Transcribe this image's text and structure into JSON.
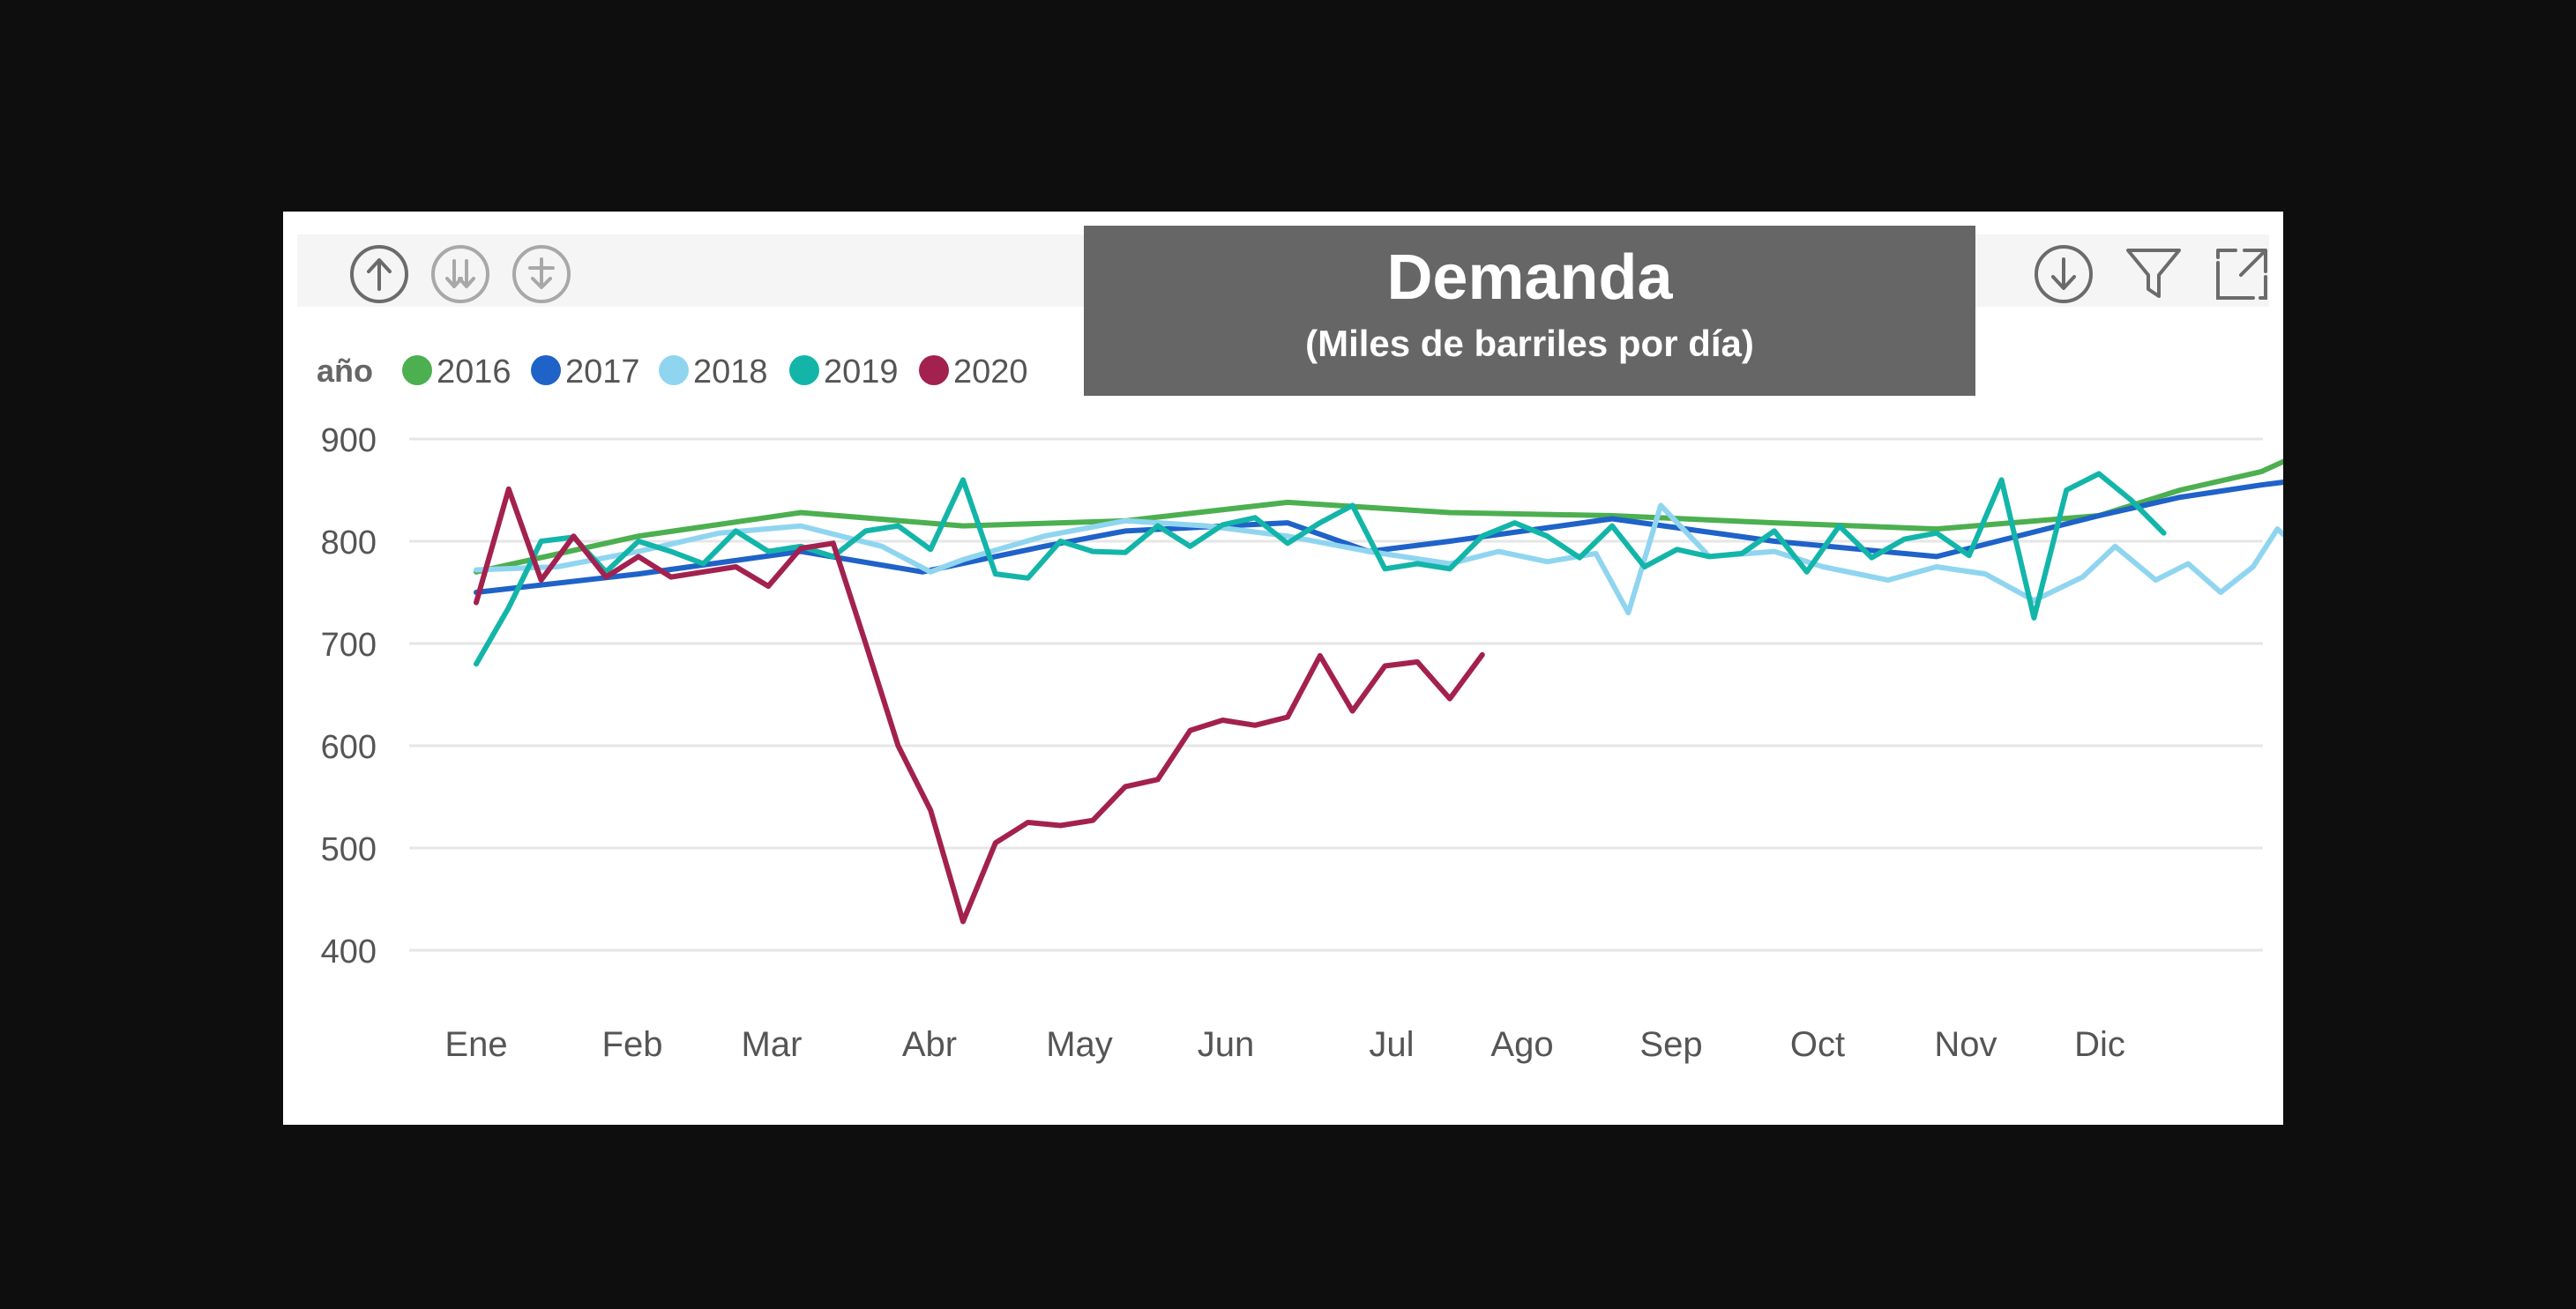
{
  "toolbar": {
    "left_icons": [
      "drill-up-icon",
      "drill-down-icon",
      "expand-hierarchy-icon"
    ],
    "right_icons": [
      "drill-down-mode-icon",
      "filter-icon",
      "focus-mode-icon"
    ],
    "icon_color": "#6b6b6b"
  },
  "chart_data": {
    "type": "line",
    "title": "Demanda",
    "subtitle": "(Miles de barriles por día)",
    "legend_title": "año",
    "legend_position": "top-left",
    "categories": [
      "Ene",
      "Feb",
      "Mar",
      "Abr",
      "May",
      "Jun",
      "Jul",
      "Ago",
      "Sep",
      "Oct",
      "Nov",
      "Dic"
    ],
    "x_range": [
      1.0,
      12.25
    ],
    "ylim": [
      400,
      900
    ],
    "yticks": [
      400,
      500,
      600,
      700,
      800,
      900
    ],
    "grid": true,
    "series": [
      {
        "name": "2016",
        "color": "#4caf50",
        "points": [
          [
            1.0,
            770
          ],
          [
            2.0,
            805
          ],
          [
            3.0,
            828
          ],
          [
            4.0,
            815
          ],
          [
            5.0,
            820
          ],
          [
            6.0,
            838
          ],
          [
            7.0,
            828
          ],
          [
            8.0,
            825
          ],
          [
            9.0,
            818
          ],
          [
            10.0,
            812
          ],
          [
            11.0,
            825
          ],
          [
            11.5,
            850
          ],
          [
            12.0,
            868
          ],
          [
            12.25,
            886
          ]
        ]
      },
      {
        "name": "2017",
        "color": "#1f62c8",
        "points": [
          [
            1.0,
            750
          ],
          [
            2.0,
            768
          ],
          [
            3.0,
            790
          ],
          [
            3.75,
            770
          ],
          [
            4.5,
            795
          ],
          [
            5.0,
            810
          ],
          [
            6.0,
            818
          ],
          [
            6.5,
            790
          ],
          [
            7.0,
            800
          ],
          [
            8.0,
            822
          ],
          [
            9.0,
            800
          ],
          [
            10.0,
            785
          ],
          [
            11.0,
            825
          ],
          [
            11.5,
            843
          ],
          [
            12.0,
            855
          ],
          [
            12.25,
            860
          ]
        ]
      },
      {
        "name": "2018",
        "color": "#90d5f0",
        "points": [
          [
            1.0,
            772
          ],
          [
            1.5,
            775
          ],
          [
            2.0,
            790
          ],
          [
            2.5,
            808
          ],
          [
            3.0,
            815
          ],
          [
            3.5,
            795
          ],
          [
            3.8,
            770
          ],
          [
            4.0,
            782
          ],
          [
            4.5,
            805
          ],
          [
            5.0,
            820
          ],
          [
            5.5,
            815
          ],
          [
            6.0,
            805
          ],
          [
            6.5,
            790
          ],
          [
            7.0,
            778
          ],
          [
            7.3,
            790
          ],
          [
            7.6,
            780
          ],
          [
            7.9,
            788
          ],
          [
            8.1,
            730
          ],
          [
            8.3,
            835
          ],
          [
            8.6,
            785
          ],
          [
            9.0,
            790
          ],
          [
            9.3,
            775
          ],
          [
            9.7,
            762
          ],
          [
            10.0,
            775
          ],
          [
            10.3,
            768
          ],
          [
            10.6,
            742
          ],
          [
            10.9,
            765
          ],
          [
            11.1,
            795
          ],
          [
            11.35,
            762
          ],
          [
            11.55,
            778
          ],
          [
            11.75,
            750
          ],
          [
            11.95,
            775
          ],
          [
            12.1,
            812
          ],
          [
            12.25,
            790
          ]
        ]
      },
      {
        "name": "2019",
        "color": "#13b5a9",
        "points": [
          [
            1.0,
            680
          ],
          [
            1.2,
            735
          ],
          [
            1.4,
            800
          ],
          [
            1.6,
            804
          ],
          [
            1.8,
            770
          ],
          [
            2.0,
            800
          ],
          [
            2.2,
            790
          ],
          [
            2.4,
            778
          ],
          [
            2.6,
            810
          ],
          [
            2.8,
            790
          ],
          [
            3.0,
            795
          ],
          [
            3.2,
            785
          ],
          [
            3.4,
            810
          ],
          [
            3.6,
            815
          ],
          [
            3.8,
            792
          ],
          [
            4.0,
            860
          ],
          [
            4.2,
            768
          ],
          [
            4.4,
            764
          ],
          [
            4.6,
            800
          ],
          [
            4.8,
            790
          ],
          [
            5.0,
            789
          ],
          [
            5.2,
            815
          ],
          [
            5.4,
            795
          ],
          [
            5.6,
            816
          ],
          [
            5.8,
            823
          ],
          [
            6.0,
            798
          ],
          [
            6.2,
            818
          ],
          [
            6.4,
            835
          ],
          [
            6.6,
            773
          ],
          [
            6.8,
            778
          ],
          [
            7.0,
            773
          ],
          [
            7.2,
            805
          ],
          [
            7.4,
            818
          ],
          [
            7.6,
            805
          ],
          [
            7.8,
            784
          ],
          [
            8.0,
            815
          ],
          [
            8.2,
            775
          ],
          [
            8.4,
            792
          ],
          [
            8.6,
            785
          ],
          [
            8.8,
            788
          ],
          [
            9.0,
            810
          ],
          [
            9.2,
            770
          ],
          [
            9.4,
            815
          ],
          [
            9.6,
            784
          ],
          [
            9.8,
            802
          ],
          [
            10.0,
            808
          ],
          [
            10.2,
            786
          ],
          [
            10.4,
            860
          ],
          [
            10.6,
            725
          ],
          [
            10.8,
            850
          ],
          [
            11.0,
            866
          ],
          [
            11.2,
            840
          ],
          [
            11.4,
            808
          ]
        ]
      },
      {
        "name": "2020",
        "color": "#a3214e",
        "points": [
          [
            1.0,
            740
          ],
          [
            1.2,
            851
          ],
          [
            1.4,
            762
          ],
          [
            1.6,
            805
          ],
          [
            1.8,
            765
          ],
          [
            2.0,
            785
          ],
          [
            2.2,
            765
          ],
          [
            2.4,
            770
          ],
          [
            2.6,
            775
          ],
          [
            2.8,
            756
          ],
          [
            3.0,
            793
          ],
          [
            3.2,
            798
          ],
          [
            3.4,
            700
          ],
          [
            3.6,
            600
          ],
          [
            3.8,
            537
          ],
          [
            4.0,
            428
          ],
          [
            4.2,
            505
          ],
          [
            4.4,
            525
          ],
          [
            4.6,
            522
          ],
          [
            4.8,
            527
          ],
          [
            5.0,
            560
          ],
          [
            5.2,
            567
          ],
          [
            5.4,
            615
          ],
          [
            5.6,
            625
          ],
          [
            5.8,
            620
          ],
          [
            6.0,
            628
          ],
          [
            6.2,
            688
          ],
          [
            6.4,
            634
          ],
          [
            6.6,
            678
          ],
          [
            6.8,
            682
          ],
          [
            7.0,
            646
          ],
          [
            7.2,
            689
          ]
        ]
      }
    ]
  }
}
